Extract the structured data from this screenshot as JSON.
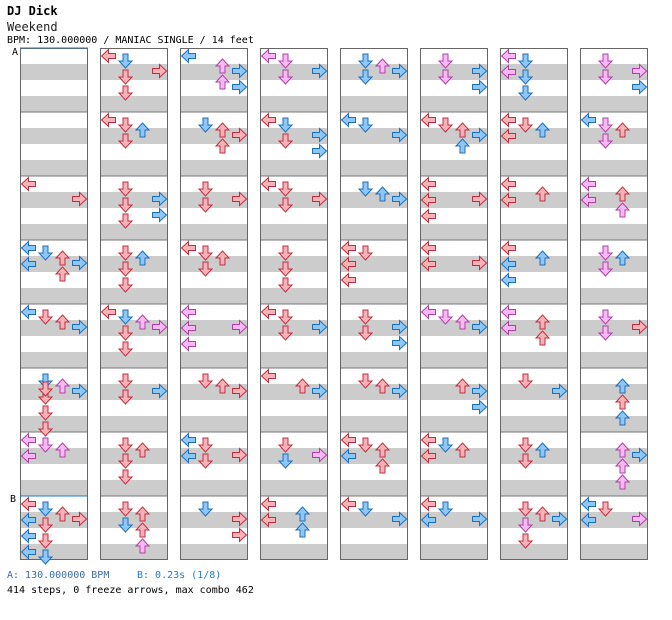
{
  "header": {
    "artist": "DJ Dick",
    "song": "Weekend",
    "meta": "BPM: 130.000000 / MANIAC SINGLE / 14 feet"
  },
  "markers": {
    "a_label": "A",
    "b_label": "B"
  },
  "footer": {
    "bpm_a": "A: 130.000000 BPM",
    "bpm_b": "B: 0.23s (1/8)",
    "stats": "414 steps, 0 freeze arrows, max combo 462"
  },
  "colors": {
    "red_fill": "#f7b1b8",
    "red_stroke": "#c0303c",
    "blue_fill": "#8ec6f5",
    "blue_stroke": "#1d6fbf",
    "pink_fill": "#f7b8f3",
    "pink_stroke": "#b03fa8",
    "stripe": "#cccccc",
    "border": "#666666"
  },
  "chart_data": {
    "type": "step-chart",
    "columns": 8,
    "measures_per_column": 8,
    "lanes": [
      "left",
      "down",
      "up",
      "right"
    ],
    "bpm": 130,
    "stop_b_seconds": 0.23,
    "steps": 414,
    "freeze_arrows": 0,
    "max_combo": 462,
    "notes": [
      [
        [
          2,
          0,
          "r"
        ],
        [
          2,
          3,
          "r"
        ],
        [
          3,
          2,
          "r"
        ],
        [
          3,
          0,
          "b"
        ],
        [
          3,
          3,
          "b"
        ],
        [
          3,
          0,
          "b"
        ],
        [
          3,
          1,
          "b"
        ],
        [
          3,
          2,
          "r"
        ],
        [
          4,
          1,
          "r"
        ],
        [
          4,
          3,
          "b"
        ],
        [
          4,
          0,
          "b"
        ],
        [
          4,
          2,
          "r"
        ],
        [
          5,
          1,
          "b"
        ],
        [
          5,
          3,
          "b"
        ],
        [
          5,
          1,
          "r"
        ],
        [
          5,
          1,
          "r"
        ],
        [
          5,
          1,
          "r"
        ],
        [
          5,
          1,
          "r"
        ],
        [
          5,
          2,
          "p"
        ],
        [
          6,
          0,
          "p"
        ],
        [
          6,
          1,
          "p"
        ],
        [
          6,
          2,
          "p"
        ],
        [
          6,
          0,
          "p"
        ],
        [
          7,
          0,
          "r"
        ],
        [
          7,
          3,
          "r"
        ],
        [
          7,
          1,
          "b"
        ],
        [
          7,
          2,
          "r"
        ],
        [
          7,
          0,
          "b"
        ],
        [
          7,
          1,
          "r"
        ],
        [
          7,
          0,
          "b"
        ],
        [
          7,
          1,
          "r"
        ],
        [
          7,
          0,
          "b"
        ],
        [
          7,
          1,
          "b"
        ]
      ],
      [
        [
          0,
          1,
          "b"
        ],
        [
          0,
          3,
          "r"
        ],
        [
          0,
          0,
          "r"
        ],
        [
          0,
          1,
          "r"
        ],
        [
          0,
          1,
          "r"
        ],
        [
          1,
          0,
          "r"
        ],
        [
          1,
          2,
          "b"
        ],
        [
          1,
          1,
          "r"
        ],
        [
          1,
          1,
          "r"
        ],
        [
          2,
          1,
          "r"
        ],
        [
          2,
          3,
          "b"
        ],
        [
          2,
          1,
          "r"
        ],
        [
          2,
          3,
          "b"
        ],
        [
          2,
          1,
          "r"
        ],
        [
          3,
          2,
          "b"
        ],
        [
          3,
          1,
          "r"
        ],
        [
          3,
          1,
          "r"
        ],
        [
          3,
          1,
          "r"
        ],
        [
          4,
          0,
          "r"
        ],
        [
          4,
          3,
          "p"
        ],
        [
          4,
          1,
          "b"
        ],
        [
          4,
          2,
          "p"
        ],
        [
          4,
          1,
          "r"
        ],
        [
          4,
          1,
          "r"
        ],
        [
          5,
          3,
          "b"
        ],
        [
          5,
          1,
          "r"
        ],
        [
          5,
          1,
          "r"
        ],
        [
          6,
          1,
          "r"
        ],
        [
          6,
          1,
          "r"
        ],
        [
          6,
          2,
          "r"
        ],
        [
          6,
          1,
          "r"
        ],
        [
          7,
          2,
          "r"
        ],
        [
          7,
          1,
          "r"
        ],
        [
          7,
          2,
          "r"
        ],
        [
          7,
          1,
          "b"
        ],
        [
          7,
          2,
          "p"
        ]
      ],
      [
        [
          0,
          2,
          "p"
        ],
        [
          0,
          3,
          "b"
        ],
        [
          0,
          2,
          "p"
        ],
        [
          0,
          3,
          "b"
        ],
        [
          0,
          0,
          "b"
        ],
        [
          1,
          2,
          "r"
        ],
        [
          1,
          1,
          "b"
        ],
        [
          1,
          2,
          "r"
        ],
        [
          1,
          3,
          "r"
        ],
        [
          2,
          1,
          "r"
        ],
        [
          2,
          3,
          "r"
        ],
        [
          2,
          1,
          "r"
        ],
        [
          3,
          0,
          "r"
        ],
        [
          3,
          1,
          "r"
        ],
        [
          3,
          2,
          "r"
        ],
        [
          3,
          1,
          "r"
        ],
        [
          4,
          0,
          "p"
        ],
        [
          4,
          3,
          "p"
        ],
        [
          4,
          0,
          "p"
        ],
        [
          4,
          0,
          "p"
        ],
        [
          5,
          2,
          "r"
        ],
        [
          5,
          3,
          "r"
        ],
        [
          5,
          1,
          "r"
        ],
        [
          6,
          0,
          "b"
        ],
        [
          6,
          1,
          "r"
        ],
        [
          6,
          0,
          "b"
        ],
        [
          6,
          3,
          "r"
        ],
        [
          6,
          1,
          "r"
        ],
        [
          7,
          3,
          "r"
        ],
        [
          7,
          3,
          "r"
        ],
        [
          7,
          1,
          "b"
        ]
      ],
      [
        [
          0,
          1,
          "p"
        ],
        [
          0,
          0,
          "p"
        ],
        [
          0,
          1,
          "p"
        ],
        [
          0,
          3,
          "b"
        ],
        [
          1,
          0,
          "r"
        ],
        [
          1,
          1,
          "b"
        ],
        [
          1,
          3,
          "b"
        ],
        [
          1,
          3,
          "b"
        ],
        [
          1,
          1,
          "r"
        ],
        [
          2,
          0,
          "r"
        ],
        [
          2,
          1,
          "r"
        ],
        [
          2,
          3,
          "r"
        ],
        [
          2,
          1,
          "r"
        ],
        [
          3,
          1,
          "r"
        ],
        [
          3,
          1,
          "r"
        ],
        [
          3,
          1,
          "r"
        ],
        [
          4,
          0,
          "r"
        ],
        [
          4,
          1,
          "r"
        ],
        [
          4,
          1,
          "r"
        ],
        [
          4,
          3,
          "b"
        ],
        [
          5,
          2,
          "r"
        ],
        [
          5,
          0,
          "r"
        ],
        [
          5,
          3,
          "b"
        ],
        [
          6,
          1,
          "r"
        ],
        [
          6,
          1,
          "b"
        ],
        [
          6,
          3,
          "p"
        ],
        [
          7,
          0,
          "r"
        ],
        [
          7,
          0,
          "r"
        ],
        [
          7,
          2,
          "b"
        ],
        [
          7,
          2,
          "b"
        ]
      ],
      [
        [
          0,
          1,
          "b"
        ],
        [
          0,
          3,
          "b"
        ],
        [
          0,
          1,
          "b"
        ],
        [
          0,
          2,
          "p"
        ],
        [
          1,
          1,
          "b"
        ],
        [
          1,
          0,
          "b"
        ],
        [
          1,
          3,
          "b"
        ],
        [
          2,
          1,
          "b"
        ],
        [
          2,
          2,
          "b"
        ],
        [
          2,
          3,
          "b"
        ],
        [
          3,
          0,
          "r"
        ],
        [
          3,
          1,
          "r"
        ],
        [
          3,
          0,
          "r"
        ],
        [
          3,
          0,
          "r"
        ],
        [
          4,
          3,
          "b"
        ],
        [
          4,
          1,
          "r"
        ],
        [
          4,
          1,
          "r"
        ],
        [
          4,
          3,
          "b"
        ],
        [
          5,
          1,
          "r"
        ],
        [
          5,
          2,
          "r"
        ],
        [
          5,
          3,
          "b"
        ],
        [
          6,
          0,
          "r"
        ],
        [
          6,
          1,
          "r"
        ],
        [
          6,
          2,
          "r"
        ],
        [
          6,
          0,
          "b"
        ],
        [
          6,
          2,
          "r"
        ],
        [
          7,
          0,
          "r"
        ],
        [
          7,
          3,
          "b"
        ],
        [
          7,
          1,
          "b"
        ]
      ],
      [
        [
          0,
          1,
          "p"
        ],
        [
          0,
          3,
          "b"
        ],
        [
          0,
          1,
          "p"
        ],
        [
          0,
          3,
          "b"
        ],
        [
          1,
          2,
          "r"
        ],
        [
          1,
          0,
          "r"
        ],
        [
          1,
          2,
          "b"
        ],
        [
          1,
          3,
          "b"
        ],
        [
          1,
          1,
          "r"
        ],
        [
          2,
          0,
          "r"
        ],
        [
          2,
          3,
          "r"
        ],
        [
          2,
          0,
          "r"
        ],
        [
          2,
          0,
          "r"
        ],
        [
          3,
          0,
          "r"
        ],
        [
          3,
          0,
          "r"
        ],
        [
          3,
          3,
          "r"
        ],
        [
          4,
          1,
          "p"
        ],
        [
          4,
          2,
          "p"
        ],
        [
          4,
          0,
          "p"
        ],
        [
          4,
          3,
          "b"
        ],
        [
          5,
          2,
          "r"
        ],
        [
          5,
          3,
          "b"
        ],
        [
          5,
          3,
          "b"
        ],
        [
          6,
          0,
          "r"
        ],
        [
          6,
          2,
          "r"
        ],
        [
          6,
          1,
          "b"
        ],
        [
          6,
          0,
          "r"
        ],
        [
          7,
          0,
          "r"
        ],
        [
          7,
          0,
          "b"
        ],
        [
          7,
          1,
          "b"
        ],
        [
          7,
          3,
          "b"
        ]
      ],
      [
        [
          0,
          0,
          "p"
        ],
        [
          0,
          1,
          "b"
        ],
        [
          0,
          0,
          "p"
        ],
        [
          0,
          1,
          "b"
        ],
        [
          0,
          1,
          "b"
        ],
        [
          1,
          0,
          "r"
        ],
        [
          1,
          2,
          "b"
        ],
        [
          1,
          0,
          "r"
        ],
        [
          1,
          1,
          "r"
        ],
        [
          2,
          2,
          "r"
        ],
        [
          2,
          0,
          "r"
        ],
        [
          2,
          0,
          "r"
        ],
        [
          3,
          0,
          "r"
        ],
        [
          3,
          0,
          "b"
        ],
        [
          3,
          2,
          "b"
        ],
        [
          3,
          0,
          "b"
        ],
        [
          4,
          0,
          "p"
        ],
        [
          4,
          2,
          "r"
        ],
        [
          4,
          2,
          "r"
        ],
        [
          4,
          0,
          "p"
        ],
        [
          5,
          3,
          "b"
        ],
        [
          5,
          1,
          "r"
        ],
        [
          6,
          2,
          "b"
        ],
        [
          6,
          1,
          "r"
        ],
        [
          6,
          1,
          "r"
        ],
        [
          7,
          1,
          "r"
        ],
        [
          7,
          2,
          "r"
        ],
        [
          7,
          1,
          "p"
        ],
        [
          7,
          1,
          "r"
        ],
        [
          7,
          3,
          "b"
        ]
      ],
      [
        [
          0,
          1,
          "p"
        ],
        [
          0,
          3,
          "p"
        ],
        [
          0,
          1,
          "p"
        ],
        [
          0,
          3,
          "b"
        ],
        [
          1,
          2,
          "r"
        ],
        [
          1,
          1,
          "p"
        ],
        [
          1,
          1,
          "p"
        ],
        [
          1,
          0,
          "b"
        ],
        [
          2,
          0,
          "p"
        ],
        [
          2,
          2,
          "r"
        ],
        [
          2,
          0,
          "p"
        ],
        [
          2,
          2,
          "p"
        ],
        [
          3,
          1,
          "p"
        ],
        [
          3,
          2,
          "b"
        ],
        [
          3,
          1,
          "p"
        ],
        [
          4,
          3,
          "r"
        ],
        [
          4,
          1,
          "p"
        ],
        [
          4,
          1,
          "p"
        ],
        [
          5,
          2,
          "b"
        ],
        [
          5,
          2,
          "r"
        ],
        [
          5,
          2,
          "b"
        ],
        [
          6,
          2,
          "p"
        ],
        [
          6,
          2,
          "p"
        ],
        [
          6,
          2,
          "p"
        ],
        [
          6,
          3,
          "b"
        ],
        [
          7,
          0,
          "b"
        ],
        [
          7,
          3,
          "p"
        ],
        [
          7,
          1,
          "r"
        ],
        [
          7,
          0,
          "b"
        ]
      ]
    ]
  }
}
